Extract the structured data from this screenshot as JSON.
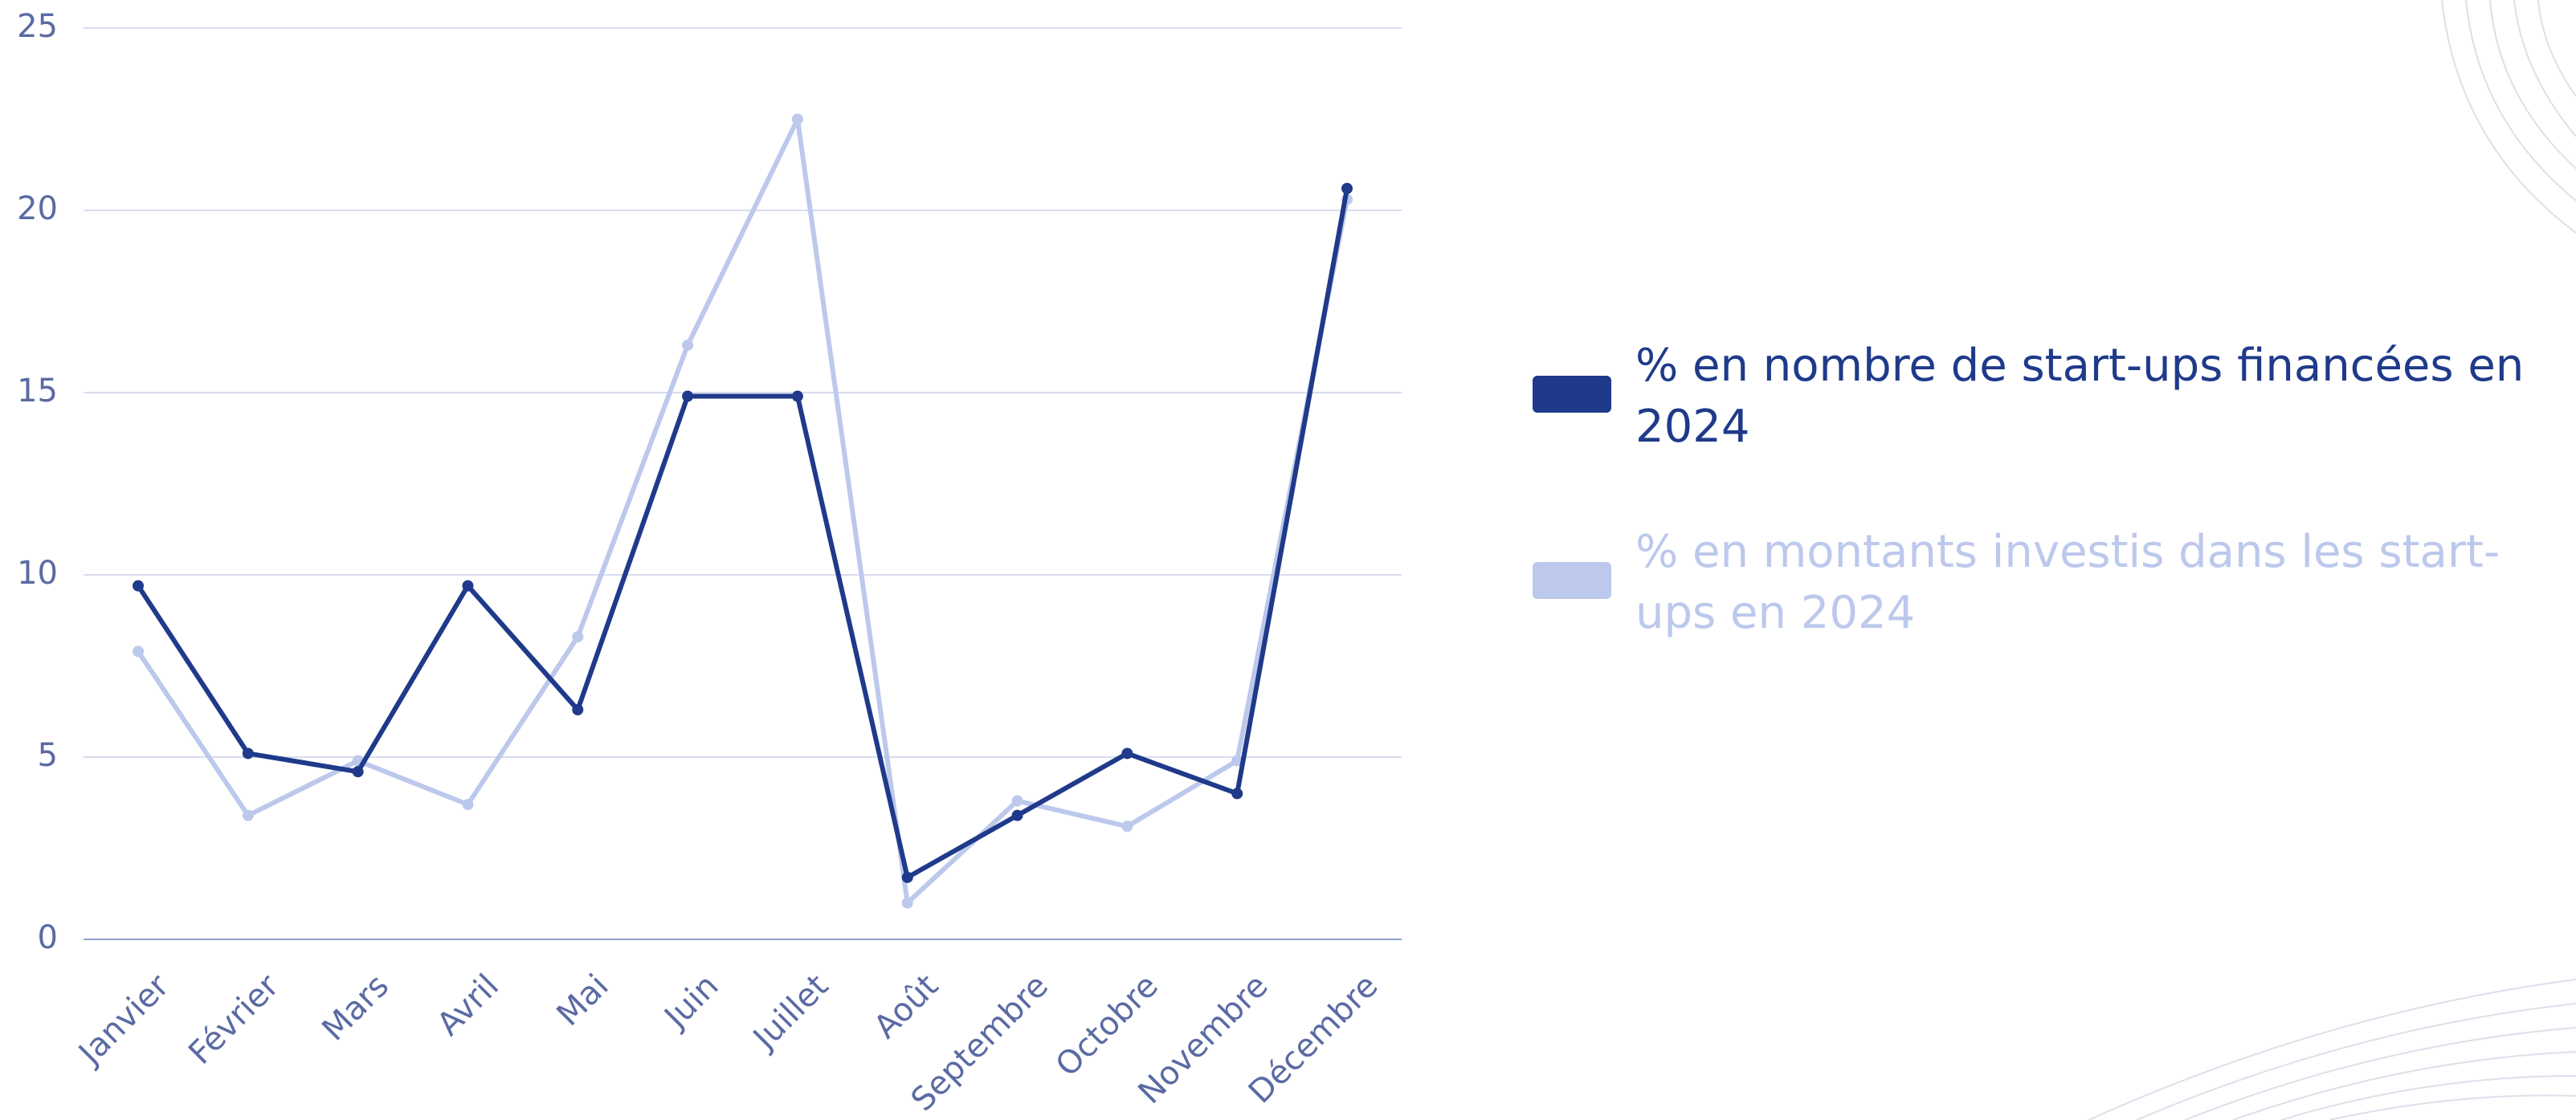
{
  "chart_data": {
    "type": "line",
    "categories": [
      "Janvier",
      "Février",
      "Mars",
      "Avril",
      "Mai",
      "Juin",
      "Juillet",
      "Août",
      "Septembre",
      "Octobre",
      "Novembre",
      "Décembre"
    ],
    "series": [
      {
        "name": "% en nombre de start-ups financées en 2024",
        "color": "#1f3a8a",
        "values": [
          9.7,
          5.1,
          4.6,
          9.7,
          6.3,
          14.9,
          14.9,
          1.7,
          3.4,
          5.1,
          4.0,
          20.6
        ]
      },
      {
        "name": "% en montants investis dans les start-ups en 2024",
        "color": "#bcc8ec",
        "values": [
          7.9,
          3.4,
          4.9,
          3.7,
          8.3,
          16.3,
          22.5,
          1.0,
          3.8,
          3.1,
          4.9,
          20.3
        ]
      }
    ],
    "ylim": [
      0,
      25
    ],
    "yticks": [
      0,
      5,
      10,
      15,
      20,
      25
    ],
    "grid": true
  }
}
